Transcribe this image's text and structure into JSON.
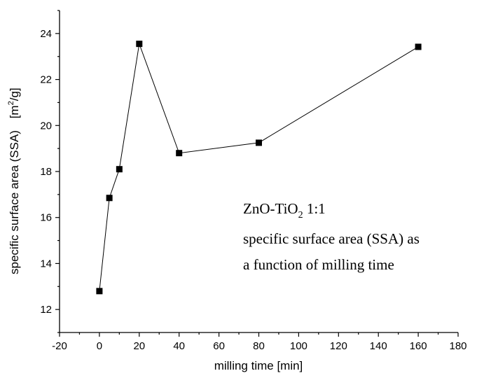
{
  "chart_data": {
    "type": "line",
    "xlabel": "milling time [min]",
    "ylabel": "specific surface area (SSA)",
    "ylabel_unit": "[m",
    "ylabel_unit_sup": "2",
    "ylabel_unit_end": "/g]",
    "xlim": [
      -20,
      180
    ],
    "ylim": [
      11,
      25
    ],
    "x_ticks": [
      -20,
      0,
      20,
      40,
      60,
      80,
      100,
      120,
      140,
      160,
      180
    ],
    "y_ticks": [
      12,
      14,
      16,
      18,
      20,
      22,
      24
    ],
    "series": [
      {
        "x": [
          0,
          5,
          10,
          20,
          40,
          80,
          160
        ],
        "y": [
          12.8,
          16.85,
          18.1,
          23.55,
          18.8,
          19.25,
          23.42
        ]
      }
    ],
    "annotation": {
      "line1_main": "ZnO-TiO",
      "line1_sub": "2",
      "line1_end": " 1:1",
      "line2": "specific surface area (SSA) as",
      "line3": "a function of milling time"
    }
  }
}
